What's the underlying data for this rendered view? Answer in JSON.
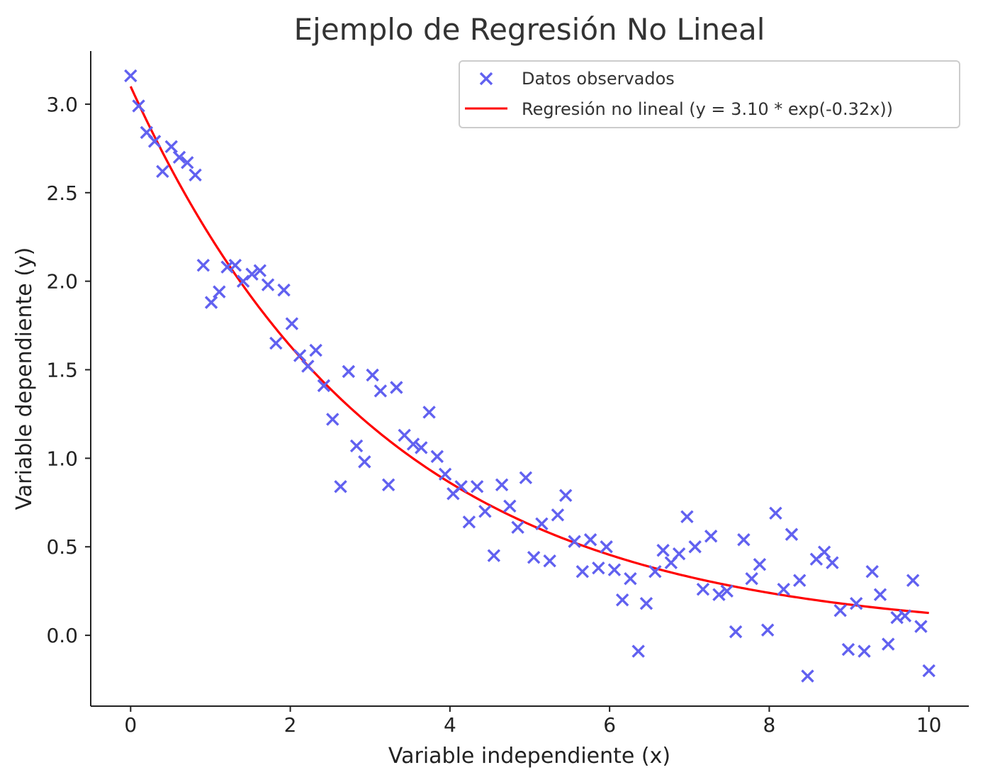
{
  "chart_data": {
    "type": "scatter",
    "title": "Ejemplo de Regresión No Lineal",
    "xlabel": "Variable independiente (x)",
    "ylabel": "Variable dependiente (y)",
    "xlim": [
      -0.5,
      10.5
    ],
    "ylim": [
      -0.4,
      3.3
    ],
    "xticks": [
      "0",
      "2",
      "4",
      "6",
      "8",
      "10"
    ],
    "xtick_values": [
      0,
      2,
      4,
      6,
      8,
      10
    ],
    "yticks": [
      "0.0",
      "0.5",
      "1.0",
      "1.5",
      "2.0",
      "2.5",
      "3.0"
    ],
    "ytick_values": [
      0.0,
      0.5,
      1.0,
      1.5,
      2.0,
      2.5,
      3.0
    ],
    "grid": false,
    "legend_position": "top-right",
    "series": [
      {
        "name": "Datos observados",
        "kind": "scatter",
        "marker": "x",
        "color": "#6161f0",
        "points": [
          [
            0.0,
            3.16
          ],
          [
            0.1,
            2.99
          ],
          [
            0.2,
            2.84
          ],
          [
            0.3,
            2.79
          ],
          [
            0.4,
            2.62
          ],
          [
            0.51,
            2.76
          ],
          [
            0.61,
            2.7
          ],
          [
            0.71,
            2.67
          ],
          [
            0.81,
            2.6
          ],
          [
            0.91,
            2.09
          ],
          [
            1.01,
            1.88
          ],
          [
            1.11,
            1.94
          ],
          [
            1.21,
            2.08
          ],
          [
            1.31,
            2.09
          ],
          [
            1.41,
            2.0
          ],
          [
            1.52,
            2.04
          ],
          [
            1.62,
            2.06
          ],
          [
            1.72,
            1.98
          ],
          [
            1.82,
            1.65
          ],
          [
            1.92,
            1.95
          ],
          [
            2.02,
            1.76
          ],
          [
            2.12,
            1.58
          ],
          [
            2.22,
            1.52
          ],
          [
            2.32,
            1.61
          ],
          [
            2.42,
            1.41
          ],
          [
            2.53,
            1.22
          ],
          [
            2.63,
            0.84
          ],
          [
            2.73,
            1.49
          ],
          [
            2.83,
            1.07
          ],
          [
            2.93,
            0.98
          ],
          [
            3.03,
            1.47
          ],
          [
            3.13,
            1.38
          ],
          [
            3.23,
            0.85
          ],
          [
            3.33,
            1.4
          ],
          [
            3.43,
            1.13
          ],
          [
            3.54,
            1.08
          ],
          [
            3.64,
            1.06
          ],
          [
            3.74,
            1.26
          ],
          [
            3.84,
            1.01
          ],
          [
            3.94,
            0.91
          ],
          [
            4.04,
            0.8
          ],
          [
            4.14,
            0.84
          ],
          [
            4.24,
            0.64
          ],
          [
            4.34,
            0.84
          ],
          [
            4.44,
            0.7
          ],
          [
            4.55,
            0.45
          ],
          [
            4.65,
            0.85
          ],
          [
            4.75,
            0.73
          ],
          [
            4.85,
            0.61
          ],
          [
            4.95,
            0.89
          ],
          [
            5.05,
            0.44
          ],
          [
            5.15,
            0.63
          ],
          [
            5.25,
            0.42
          ],
          [
            5.35,
            0.68
          ],
          [
            5.45,
            0.79
          ],
          [
            5.56,
            0.53
          ],
          [
            5.66,
            0.36
          ],
          [
            5.76,
            0.54
          ],
          [
            5.86,
            0.38
          ],
          [
            5.96,
            0.5
          ],
          [
            6.06,
            0.37
          ],
          [
            6.16,
            0.2
          ],
          [
            6.26,
            0.32
          ],
          [
            6.36,
            -0.09
          ],
          [
            6.46,
            0.18
          ],
          [
            6.57,
            0.36
          ],
          [
            6.67,
            0.48
          ],
          [
            6.77,
            0.41
          ],
          [
            6.87,
            0.46
          ],
          [
            6.97,
            0.67
          ],
          [
            7.07,
            0.5
          ],
          [
            7.17,
            0.26
          ],
          [
            7.27,
            0.56
          ],
          [
            7.37,
            0.23
          ],
          [
            7.47,
            0.25
          ],
          [
            7.58,
            0.02
          ],
          [
            7.68,
            0.54
          ],
          [
            7.78,
            0.32
          ],
          [
            7.88,
            0.4
          ],
          [
            7.98,
            0.03
          ],
          [
            8.08,
            0.69
          ],
          [
            8.18,
            0.26
          ],
          [
            8.28,
            0.57
          ],
          [
            8.38,
            0.31
          ],
          [
            8.48,
            -0.23
          ],
          [
            8.59,
            0.43
          ],
          [
            8.69,
            0.47
          ],
          [
            8.79,
            0.41
          ],
          [
            8.89,
            0.14
          ],
          [
            8.99,
            -0.08
          ],
          [
            9.09,
            0.18
          ],
          [
            9.19,
            -0.09
          ],
          [
            9.29,
            0.36
          ],
          [
            9.39,
            0.23
          ],
          [
            9.49,
            -0.05
          ],
          [
            9.6,
            0.1
          ],
          [
            9.7,
            0.11
          ],
          [
            9.8,
            0.31
          ],
          [
            9.9,
            0.05
          ],
          [
            10.0,
            -0.2
          ]
        ]
      },
      {
        "name": "Regresión no lineal (y = 3.10 * exp(-0.32x))",
        "kind": "line",
        "color": "#ff0000",
        "function": {
          "a": 3.1,
          "b": -0.32
        },
        "x_range": [
          0,
          10
        ]
      }
    ]
  }
}
